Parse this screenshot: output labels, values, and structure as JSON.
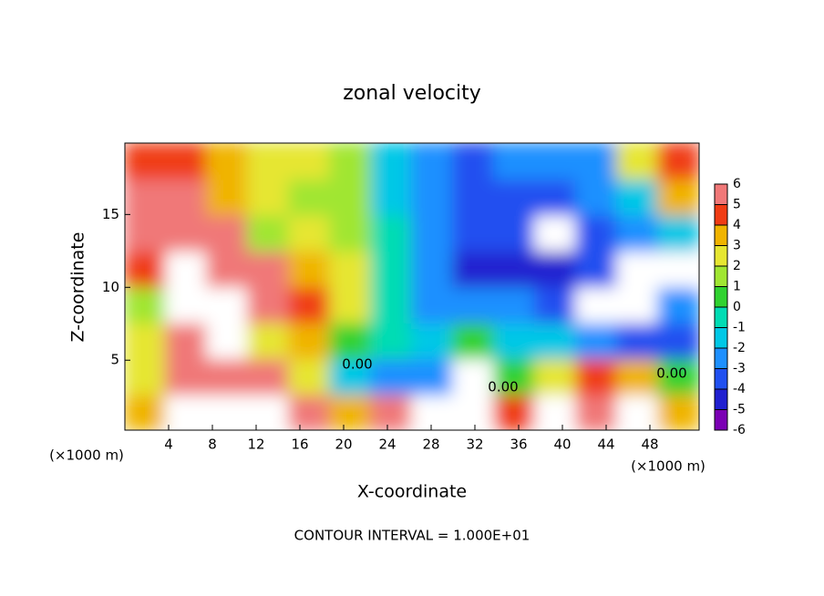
{
  "chart_data": {
    "type": "heatmap",
    "title": "zonal velocity",
    "x_label": "X-coordinate",
    "y_label": "Z-coordinate",
    "x_unit_label": "(×1000 m)",
    "y_unit_label": "(×1000 m)",
    "footer": "CONTOUR INTERVAL = 1.000E+01",
    "contour_labels": [
      "0.00",
      "0.00",
      "0.00"
    ],
    "xlim": [
      0,
      52.5
    ],
    "ylim": [
      0.2,
      19.9
    ],
    "xticks": [
      4,
      8,
      12,
      16,
      20,
      24,
      28,
      32,
      36,
      40,
      44,
      48
    ],
    "yticks": [
      5,
      10,
      15
    ],
    "x": [
      1.875,
      5.625,
      9.375,
      13.125,
      16.875,
      20.625,
      24.375,
      28.125,
      31.875,
      35.625,
      39.375,
      43.125,
      46.875,
      50.625
    ],
    "y": [
      1.43,
      3.89,
      6.36,
      8.82,
      11.28,
      13.74,
      16.21,
      18.67
    ],
    "values": [
      [
        3,
        7,
        7,
        7,
        5,
        3,
        6,
        7,
        7,
        4,
        7,
        5,
        7,
        3
      ],
      [
        2,
        5,
        6,
        5,
        2,
        -2,
        -3,
        -3,
        7,
        0,
        2,
        4,
        3,
        0
      ],
      [
        2,
        6,
        7,
        2,
        3,
        0,
        -1,
        -2,
        0,
        -2,
        -2,
        -3,
        -4,
        -4
      ],
      [
        1,
        7,
        7,
        5,
        4,
        2,
        -1,
        -2.5,
        -3,
        -3,
        -4,
        7,
        7,
        -3
      ],
      [
        4,
        7,
        6,
        5,
        3,
        2,
        -1,
        -3,
        -4.5,
        -4.5,
        -5,
        -4,
        7,
        7
      ],
      [
        6,
        6,
        5,
        1.5,
        2,
        1.5,
        -1,
        -3,
        -4,
        -4,
        7,
        -4,
        -3,
        -2
      ],
      [
        5.5,
        5,
        3,
        2,
        1.5,
        1,
        -1.5,
        -3,
        -4,
        -4,
        -4,
        -3,
        -2,
        3
      ],
      [
        4,
        4,
        3,
        2,
        2,
        1,
        -1.5,
        -2.5,
        -3.5,
        -3,
        -3,
        -2.5,
        2,
        4
      ]
    ],
    "clim": [
      -6,
      6
    ],
    "colorbar_ticks": [
      6,
      5,
      4,
      3,
      2,
      1,
      0,
      -1,
      -2,
      -3,
      -4,
      -5,
      -6
    ],
    "colors": [
      "#7b00b4",
      "#2020d0",
      "#2050f0",
      "#1e90ff",
      "#00c8e6",
      "#00dcb4",
      "#30d230",
      "#a0e632",
      "#e6e632",
      "#f0b400",
      "#f03c14",
      "#f07878"
    ],
    "over_color": "#ffffff"
  }
}
